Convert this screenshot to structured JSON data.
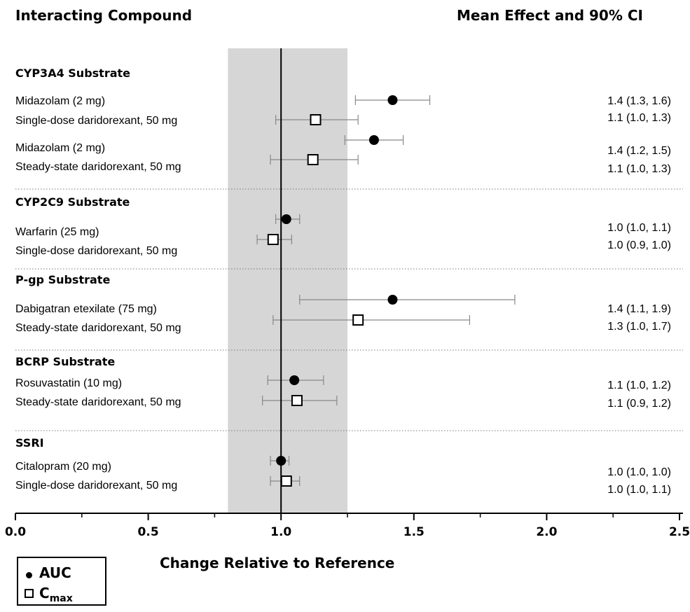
{
  "headers": {
    "left": "Interacting Compound",
    "right": "Mean Effect and 90% CI"
  },
  "legend": {
    "auc_label": "AUC",
    "cmax_label_main": "C",
    "cmax_label_sub": "max"
  },
  "chart_data": {
    "type": "forest",
    "xlabel": "Change Relative to Reference",
    "xlim": [
      0.0,
      2.5
    ],
    "x_ticks": [
      "0.0",
      "0.5",
      "1.0",
      "1.5",
      "2.0",
      "2.5"
    ],
    "reference_line": 1.0,
    "shaded_band": [
      0.8,
      1.25
    ],
    "groups": [
      {
        "title": "CYP3A4 Substrate",
        "rows": [
          {
            "label": "Midazolam (2 mg)",
            "marker": "AUC",
            "mean": 1.42,
            "ci": [
              1.28,
              1.56
            ],
            "text": "1.4 (1.3, 1.6)"
          },
          {
            "label": "Single-dose daridorexant, 50 mg",
            "marker": "Cmax",
            "mean": 1.13,
            "ci": [
              0.98,
              1.29
            ],
            "text": "1.1 (1.0, 1.3)"
          },
          {
            "label": "Midazolam (2 mg)",
            "marker": "AUC",
            "mean": 1.35,
            "ci": [
              1.24,
              1.46
            ],
            "text": "1.4 (1.2, 1.5)"
          },
          {
            "label": "Steady-state daridorexant, 50 mg",
            "marker": "Cmax",
            "mean": 1.12,
            "ci": [
              0.96,
              1.29
            ],
            "text": "1.1 (1.0, 1.3)"
          }
        ]
      },
      {
        "title": "CYP2C9 Substrate",
        "rows": [
          {
            "label": "Warfarin (25 mg)",
            "marker": "AUC",
            "mean": 1.02,
            "ci": [
              0.98,
              1.07
            ],
            "text": "1.0 (1.0, 1.1)"
          },
          {
            "label": "Single-dose daridorexant, 50 mg",
            "marker": "Cmax",
            "mean": 0.97,
            "ci": [
              0.91,
              1.04
            ],
            "text": "1.0 (0.9, 1.0)"
          }
        ]
      },
      {
        "title": "P-gp Substrate",
        "rows": [
          {
            "label": "Dabigatran etexilate (75 mg)",
            "marker": "AUC",
            "mean": 1.42,
            "ci": [
              1.07,
              1.88
            ],
            "text": "1.4 (1.1, 1.9)"
          },
          {
            "label": "Steady-state daridorexant, 50 mg",
            "marker": "Cmax",
            "mean": 1.29,
            "ci": [
              0.97,
              1.71
            ],
            "text": "1.3 (1.0, 1.7)"
          }
        ]
      },
      {
        "title": "BCRP Substrate",
        "rows": [
          {
            "label": "Rosuvastatin (10 mg)",
            "marker": "AUC",
            "mean": 1.05,
            "ci": [
              0.95,
              1.16
            ],
            "text": "1.1 (1.0, 1.2)"
          },
          {
            "label": "Steady-state daridorexant, 50 mg",
            "marker": "Cmax",
            "mean": 1.06,
            "ci": [
              0.93,
              1.21
            ],
            "text": "1.1 (0.9, 1.2)"
          }
        ]
      },
      {
        "title": "SSRI",
        "rows": [
          {
            "label": "Citalopram (20 mg)",
            "marker": "AUC",
            "mean": 1.0,
            "ci": [
              0.96,
              1.03
            ],
            "text": "1.0 (1.0, 1.0)"
          },
          {
            "label": "Single-dose daridorexant, 50 mg",
            "marker": "Cmax",
            "mean": 1.02,
            "ci": [
              0.96,
              1.07
            ],
            "text": "1.0 (1.0, 1.1)"
          }
        ]
      }
    ]
  }
}
